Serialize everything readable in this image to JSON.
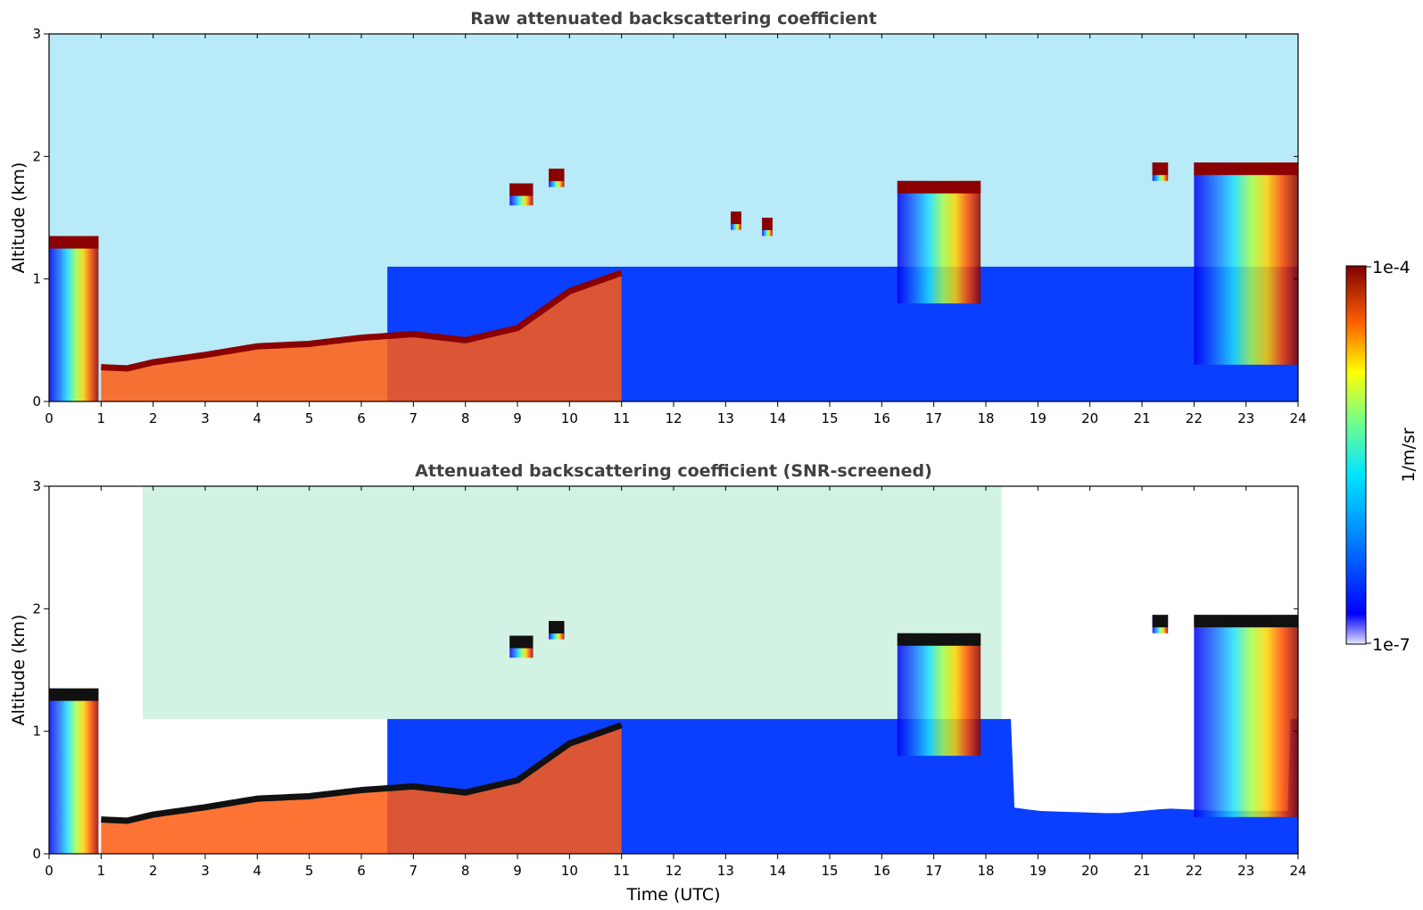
{
  "chart_data": [
    {
      "type": "heatmap",
      "title": "Raw attenuated backscattering coefficient",
      "xlabel": "",
      "ylabel": "Altitude (km)",
      "xlim": [
        0,
        24
      ],
      "ylim": [
        0,
        3
      ],
      "x_ticks": [
        "0",
        "1",
        "2",
        "3",
        "4",
        "5",
        "6",
        "7",
        "8",
        "9",
        "10",
        "11",
        "12",
        "13",
        "14",
        "15",
        "16",
        "17",
        "18",
        "19",
        "20",
        "21",
        "22",
        "23",
        "24"
      ],
      "y_ticks": [
        "0",
        "1",
        "2",
        "3"
      ],
      "boundary_layer_top_km": [
        [
          1.0,
          0.28
        ],
        [
          1.5,
          0.27
        ],
        [
          2.0,
          0.32
        ],
        [
          3.0,
          0.38
        ],
        [
          4.0,
          0.45
        ],
        [
          5.0,
          0.47
        ],
        [
          6.0,
          0.52
        ],
        [
          7.0,
          0.55
        ],
        [
          8.0,
          0.5
        ],
        [
          9.0,
          0.6
        ],
        [
          10.0,
          0.9
        ],
        [
          11.0,
          1.05
        ]
      ],
      "cloud_layers": [
        {
          "t_start": 0.0,
          "t_end": 0.95,
          "z_bottom": 0.0,
          "z_top": 1.35
        },
        {
          "t_start": 8.85,
          "t_end": 9.3,
          "z_bottom": 1.6,
          "z_top": 1.78
        },
        {
          "t_start": 9.6,
          "t_end": 9.9,
          "z_bottom": 1.75,
          "z_top": 1.9
        },
        {
          "t_start": 13.1,
          "t_end": 13.3,
          "z_bottom": 1.4,
          "z_top": 1.55
        },
        {
          "t_start": 13.7,
          "t_end": 13.9,
          "z_bottom": 1.35,
          "z_top": 1.5
        },
        {
          "t_start": 16.3,
          "t_end": 17.9,
          "z_bottom": 0.8,
          "z_top": 1.8
        },
        {
          "t_start": 21.2,
          "t_end": 21.5,
          "z_bottom": 1.8,
          "z_top": 1.95
        },
        {
          "t_start": 22.0,
          "t_end": 24.0,
          "z_bottom": 0.3,
          "z_top": 1.95
        }
      ]
    },
    {
      "type": "heatmap",
      "title": "Attenuated backscattering coefficient (SNR-screened)",
      "xlabel": "Time (UTC)",
      "ylabel": "Altitude (km)",
      "xlim": [
        0,
        24
      ],
      "ylim": [
        0,
        3
      ],
      "x_ticks": [
        "0",
        "1",
        "2",
        "3",
        "4",
        "5",
        "6",
        "7",
        "8",
        "9",
        "10",
        "11",
        "12",
        "13",
        "14",
        "15",
        "16",
        "17",
        "18",
        "19",
        "20",
        "21",
        "22",
        "23",
        "24"
      ],
      "y_ticks": [
        "0",
        "1",
        "2",
        "3"
      ],
      "screened_top_km": [
        [
          0,
          3
        ],
        [
          18.3,
          3
        ],
        [
          18.5,
          0.38
        ],
        [
          19,
          0.35
        ],
        [
          20.5,
          0.33
        ],
        [
          21.5,
          0.37
        ],
        [
          22.5,
          0.35
        ],
        [
          23.3,
          0.35
        ],
        [
          24,
          0.35
        ]
      ],
      "cloud_layers": [
        {
          "t_start": 0.0,
          "t_end": 0.95,
          "z_bottom": 0.0,
          "z_top": 1.35
        },
        {
          "t_start": 8.85,
          "t_end": 9.3,
          "z_bottom": 1.6,
          "z_top": 1.78
        },
        {
          "t_start": 9.6,
          "t_end": 9.9,
          "z_bottom": 1.75,
          "z_top": 1.9
        },
        {
          "t_start": 16.3,
          "t_end": 17.9,
          "z_bottom": 0.8,
          "z_top": 1.8
        },
        {
          "t_start": 21.2,
          "t_end": 21.5,
          "z_bottom": 1.8,
          "z_top": 1.95
        },
        {
          "t_start": 22.0,
          "t_end": 24.0,
          "z_bottom": 0.3,
          "z_top": 1.95
        }
      ]
    }
  ],
  "colorbar": {
    "label": "1/m/sr",
    "max_label": "1e-4",
    "min_label": "1e-7",
    "colormap": "jet"
  }
}
